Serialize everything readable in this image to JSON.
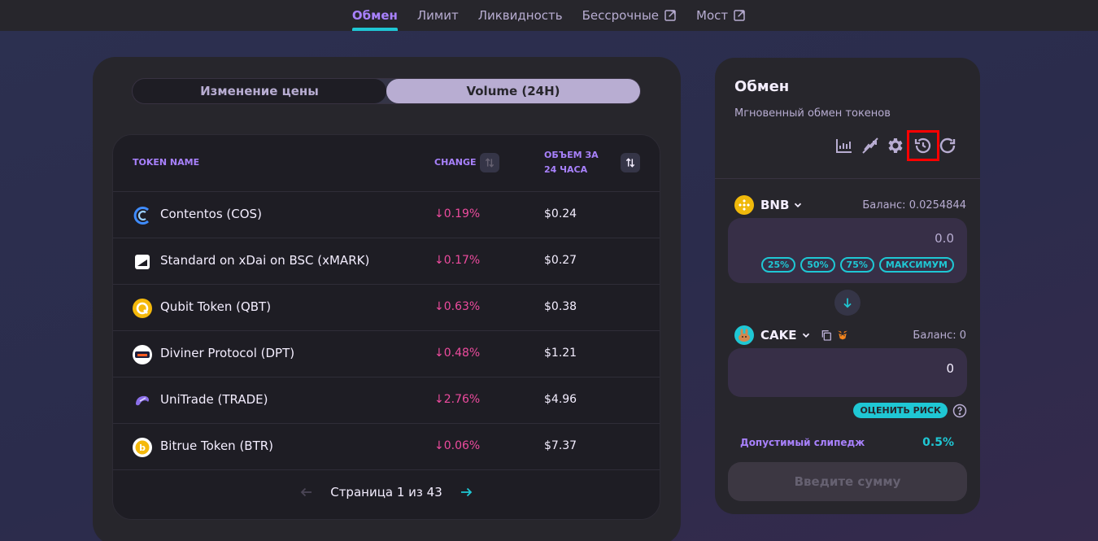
{
  "nav": {
    "items": [
      {
        "label": "Обмен",
        "active": true,
        "external": false
      },
      {
        "label": "Лимит",
        "active": false,
        "external": false
      },
      {
        "label": "Ликвидность",
        "active": false,
        "external": false
      },
      {
        "label": "Бессрочные",
        "active": false,
        "external": true
      },
      {
        "label": "Мост",
        "active": false,
        "external": true
      }
    ]
  },
  "chart_toggle": {
    "options": [
      "Изменение цены",
      "Volume (24H)"
    ],
    "active_index": 1
  },
  "table": {
    "headers": {
      "name": "TOKEN NAME",
      "change": "CHANGE",
      "volume_line1": "ОБЪЕМ ЗА",
      "volume_line2": "24 ЧАСА"
    },
    "rows": [
      {
        "name": "Contentos  (COS)",
        "change": "↓0.19%",
        "volume": "$0.24",
        "icon": "contentos-icon"
      },
      {
        "name": "Standard on xDai on BSC  (xMARK)",
        "change": "↓0.17%",
        "volume": "$0.27",
        "icon": "xmark-icon"
      },
      {
        "name": "Qubit Token  (QBT)",
        "change": "↓0.63%",
        "volume": "$0.38",
        "icon": "qubit-icon"
      },
      {
        "name": "Diviner Protocol  (DPT)",
        "change": "↓0.48%",
        "volume": "$1.21",
        "icon": "diviner-icon"
      },
      {
        "name": "UniTrade  (TRADE)",
        "change": "↓2.76%",
        "volume": "$4.96",
        "icon": "unitrade-icon"
      },
      {
        "name": "Bitrue Token  (BTR)",
        "change": "↓0.06%",
        "volume": "$7.37",
        "icon": "bitrue-icon"
      }
    ],
    "pager": "Страница 1 из 43"
  },
  "swap": {
    "title": "Обмен",
    "subtitle": "Мгновенный обмен токенов",
    "from": {
      "symbol": "BNB",
      "balance": "Баланс: 0.0254844",
      "value": "0.0"
    },
    "percent_buttons": [
      "25%",
      "50%",
      "75%",
      "МАКСИМУМ"
    ],
    "to": {
      "symbol": "CAKE",
      "balance": "Баланс: 0",
      "value": "0"
    },
    "risk_button": "ОЦЕНИТЬ РИСК",
    "slippage_label": "Допустимый слипедж",
    "slippage_value": "0.5%",
    "submit": "Введите сумму"
  },
  "colors": {
    "accent": "#1fc7d4",
    "purple": "#a881fc",
    "negative": "#ed4b9e",
    "highlight": "#ff0000"
  }
}
